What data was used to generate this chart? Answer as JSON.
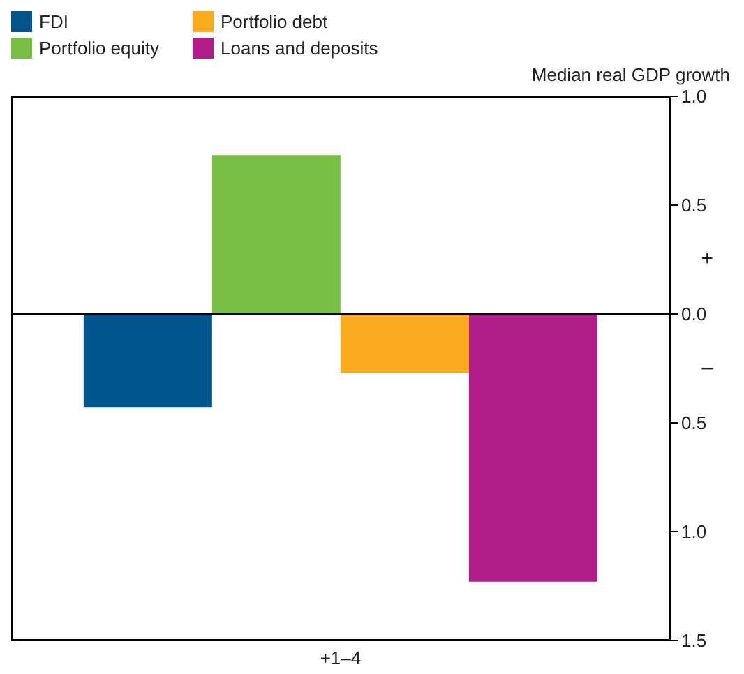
{
  "chart_data": {
    "type": "bar",
    "categories": [
      "+1–4"
    ],
    "ylabel": "Median real GDP growth",
    "series": [
      {
        "name": "FDI",
        "color": "#00558c",
        "values": [
          -0.43
        ]
      },
      {
        "name": "Portfolio equity",
        "color": "#78be43",
        "values": [
          0.73
        ]
      },
      {
        "name": "Portfolio debt",
        "color": "#f9ab1d",
        "values": [
          -0.27
        ]
      },
      {
        "name": "Loans and deposits",
        "color": "#b01c88",
        "values": [
          -1.23
        ]
      }
    ],
    "ylim": [
      -1.5,
      1.0
    ],
    "yticks": [
      {
        "value": 1.0,
        "label": "1.0"
      },
      {
        "value": 0.5,
        "label": "0.5"
      },
      {
        "value": 0,
        "label": "0.0"
      },
      {
        "value": -0.5,
        "label": "0.5"
      },
      {
        "value": -1.0,
        "label": "1.0"
      },
      {
        "value": -1.5,
        "label": "1.5"
      }
    ],
    "ref_lines": [
      {
        "axis": "y",
        "value": 0,
        "color": "#000000"
      }
    ],
    "annotations": [
      "+",
      "–"
    ],
    "legend": "top left"
  }
}
